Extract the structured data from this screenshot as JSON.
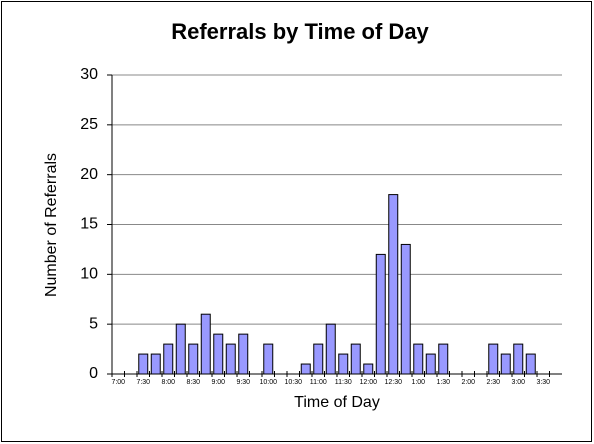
{
  "chart_data": {
    "type": "bar",
    "title": "Referrals by Time of Day",
    "x_label": "Time of Day",
    "y_label": "Number of Referrals",
    "categories": [
      "7:00",
      null,
      "7:30",
      null,
      "8:00",
      null,
      "8:30",
      null,
      "9:00",
      null,
      "9:30",
      null,
      "10:00",
      null,
      "10:30",
      null,
      "11:00",
      null,
      "11:30",
      null,
      "12:00",
      null,
      "12:30",
      null,
      "1:00",
      null,
      "1:30",
      null,
      "2:00",
      null,
      "2:30",
      null,
      "3:00",
      null,
      "3:30",
      null
    ],
    "values": [
      0,
      0,
      2,
      2,
      3,
      5,
      3,
      6,
      4,
      3,
      4,
      0,
      3,
      0,
      0,
      1,
      3,
      5,
      2,
      3,
      1,
      12,
      18,
      13,
      3,
      2,
      3,
      0,
      0,
      0,
      3,
      2,
      3,
      2,
      0,
      0
    ],
    "color": "#9999ff",
    "ylim": [
      0,
      30
    ],
    "yticks": [
      0,
      5,
      10,
      15,
      20,
      25,
      30
    ],
    "grid": true
  }
}
